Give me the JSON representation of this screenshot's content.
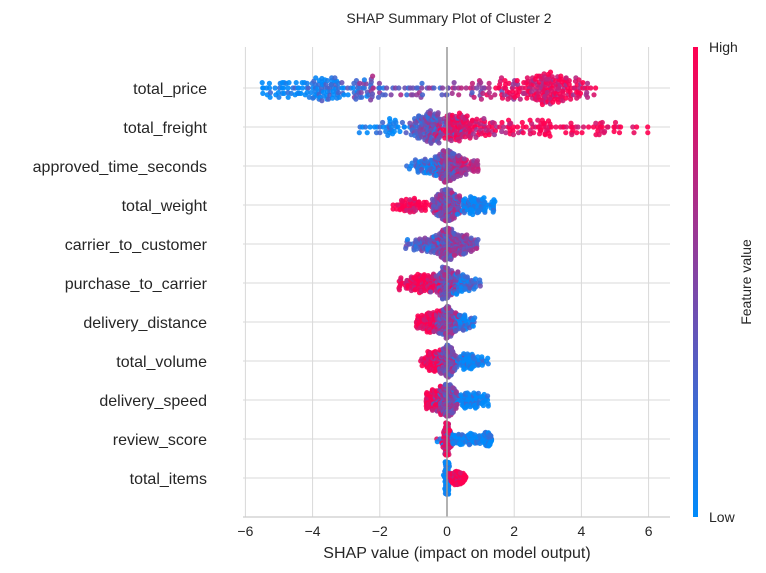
{
  "chart_data": {
    "type": "scatter",
    "subtype": "shap-beeswarm",
    "title": "SHAP Summary Plot of Cluster 2",
    "xlabel": "SHAP value (impact on model output)",
    "xlim": [
      -6.5,
      6.7
    ],
    "xticks": [
      -6,
      -4,
      -2,
      0,
      2,
      4,
      6
    ],
    "xtick_labels": [
      "−6",
      "−4",
      "−2",
      "0",
      "2",
      "4",
      "6"
    ],
    "grid": true,
    "colorbar": {
      "label": "Feature value",
      "high_label": "High",
      "low_label": "Low",
      "low_color": "#008bfb",
      "high_color": "#ff0051"
    },
    "features": [
      {
        "name": "total_price",
        "range": [
          -5.5,
          4.4
        ],
        "components": [
          [
            -4.8,
            0.4,
            0.08,
            0.0
          ],
          [
            -3.6,
            0.45,
            0.22,
            0.1
          ],
          [
            -2.3,
            0.35,
            0.1,
            0.35
          ],
          [
            -1.0,
            0.8,
            0.08,
            0.45
          ],
          [
            0.5,
            0.6,
            0.06,
            0.55
          ],
          [
            1.8,
            0.4,
            0.08,
            0.8
          ],
          [
            3.0,
            0.45,
            0.33,
            0.9
          ],
          [
            4.0,
            0.2,
            0.05,
            0.85
          ]
        ]
      },
      {
        "name": "total_freight",
        "range": [
          -2.6,
          6.0
        ],
        "components": [
          [
            -1.8,
            0.4,
            0.08,
            0.05
          ],
          [
            -0.5,
            0.3,
            0.35,
            0.4
          ],
          [
            0.3,
            0.3,
            0.25,
            0.85
          ],
          [
            1.3,
            0.5,
            0.12,
            0.85
          ],
          [
            3.5,
            1.1,
            0.2,
            1.0
          ]
        ]
      },
      {
        "name": "approved_time_seconds",
        "range": [
          -1.2,
          0.9
        ],
        "components": [
          [
            0,
            0.15,
            0.6,
            0.5
          ],
          [
            -0.5,
            0.3,
            0.2,
            0.2
          ],
          [
            0.4,
            0.25,
            0.2,
            0.7
          ]
        ]
      },
      {
        "name": "total_weight",
        "range": [
          -1.6,
          1.4
        ],
        "components": [
          [
            0,
            0.2,
            0.6,
            0.5
          ],
          [
            -1.0,
            0.3,
            0.15,
            1.0
          ],
          [
            0.8,
            0.3,
            0.25,
            0.0
          ]
        ]
      },
      {
        "name": "carrier_to_customer",
        "range": [
          -1.2,
          0.9
        ],
        "components": [
          [
            0,
            0.15,
            0.6,
            0.5
          ],
          [
            -0.6,
            0.3,
            0.2,
            0.3
          ],
          [
            0.5,
            0.2,
            0.2,
            0.5
          ]
        ]
      },
      {
        "name": "purchase_to_carrier",
        "range": [
          -1.4,
          1.0
        ],
        "components": [
          [
            0,
            0.15,
            0.55,
            0.5
          ],
          [
            -0.7,
            0.35,
            0.3,
            0.95
          ],
          [
            0.5,
            0.2,
            0.15,
            0.2
          ]
        ]
      },
      {
        "name": "delivery_distance",
        "range": [
          -0.9,
          0.8
        ],
        "components": [
          [
            0,
            0.15,
            0.55,
            0.5
          ],
          [
            -0.5,
            0.2,
            0.3,
            0.95
          ],
          [
            0.5,
            0.15,
            0.15,
            0.1
          ]
        ]
      },
      {
        "name": "total_volume",
        "range": [
          -0.8,
          1.2
        ],
        "components": [
          [
            0,
            0.15,
            0.55,
            0.5
          ],
          [
            -0.4,
            0.15,
            0.25,
            0.95
          ],
          [
            0.7,
            0.25,
            0.2,
            0.0
          ]
        ]
      },
      {
        "name": "delivery_speed",
        "range": [
          -0.6,
          1.2
        ],
        "components": [
          [
            0,
            0.15,
            0.55,
            0.5
          ],
          [
            -0.4,
            0.15,
            0.25,
            0.95
          ],
          [
            0.7,
            0.25,
            0.2,
            0.0
          ]
        ]
      },
      {
        "name": "review_score",
        "range": [
          -0.3,
          1.3
        ],
        "components": [
          [
            0,
            0.05,
            0.6,
            0.85
          ],
          [
            0.5,
            0.3,
            0.25,
            0.0
          ],
          [
            1.2,
            0.1,
            0.15,
            0.0
          ]
        ]
      },
      {
        "name": "total_items",
        "range": [
          -0.1,
          0.55
        ],
        "components": [
          [
            0,
            0.02,
            0.7,
            0.0
          ],
          [
            0.3,
            0.12,
            0.3,
            1.0
          ]
        ]
      }
    ]
  }
}
